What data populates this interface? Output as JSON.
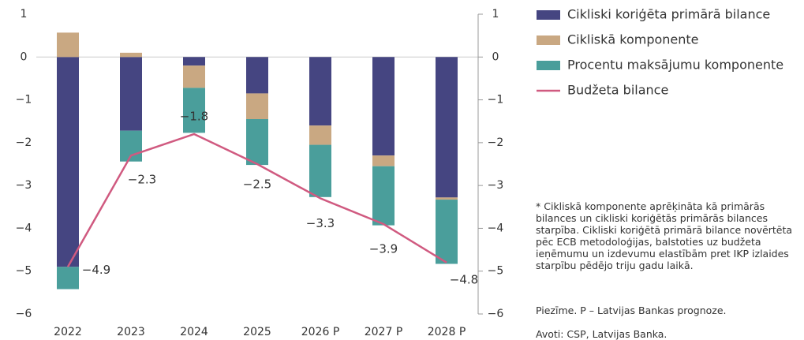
{
  "chart_data": {
    "type": "bar",
    "categories": [
      "2022",
      "2023",
      "2024",
      "2025",
      "2026 P",
      "2027 P",
      "2028 P"
    ],
    "series": [
      {
        "name": "Cikliski koriģēta primārā bilance",
        "color": "#454581",
        "values": [
          -4.9,
          -1.72,
          -0.2,
          -0.85,
          -1.6,
          -2.3,
          -3.28
        ]
      },
      {
        "name": "Cikliskā komponente",
        "color": "#c9a882",
        "values": [
          0.57,
          0.1,
          -0.52,
          -0.6,
          -0.45,
          -0.25,
          -0.05
        ]
      },
      {
        "name": "Procentu maksājumu komponente",
        "color": "#4a9e9b",
        "values": [
          -0.52,
          -0.72,
          -1.05,
          -1.07,
          -1.22,
          -1.38,
          -1.5
        ]
      },
      {
        "name": "Budžeta bilance",
        "type": "line",
        "color": "#d05a80",
        "values": [
          -4.9,
          -2.3,
          -1.8,
          -2.5,
          -3.3,
          -3.9,
          -4.8
        ],
        "value_labels": [
          "−4.9",
          "−2.3",
          "−1.8",
          "−2.5",
          "−3.3",
          "−3.9",
          "−4.8"
        ]
      }
    ],
    "stacked": true,
    "ylim": [
      -6,
      1
    ],
    "yticks": [
      {
        "value": -6,
        "label": "−6"
      },
      {
        "value": -5,
        "label": "−5"
      },
      {
        "value": -4,
        "label": "−4"
      },
      {
        "value": -3,
        "label": "−3"
      },
      {
        "value": -2,
        "label": "−2"
      },
      {
        "value": -1,
        "label": "−1"
      },
      0,
      1
    ],
    "y2lim": [
      -6,
      1
    ],
    "y2ticks": [
      {
        "value": -6,
        "label": "−6"
      },
      {
        "value": -5,
        "label": "−5"
      },
      {
        "value": -4,
        "label": "−4"
      },
      {
        "value": -3,
        "label": "−3"
      },
      {
        "value": -2,
        "label": "−2"
      },
      {
        "value": -1,
        "label": "−1"
      },
      0,
      1
    ],
    "notes": [
      "* Cikliskā komponente aprēķināta kā primārās bilances un cikliski koriģētās primārās bilances starpība. Cikliski koriģētā primārā bilance novērtēta pēc ECB metodoloģijas, balstoties uz budžeta ieņēmumu un izdevumu elastībām pret IKP izlaides starpību pēdējo triju gadu laikā.",
      "Piezīme. P – Latvijas Bankas prognoze.",
      "Avoti: CSP, Latvijas Banka."
    ]
  }
}
